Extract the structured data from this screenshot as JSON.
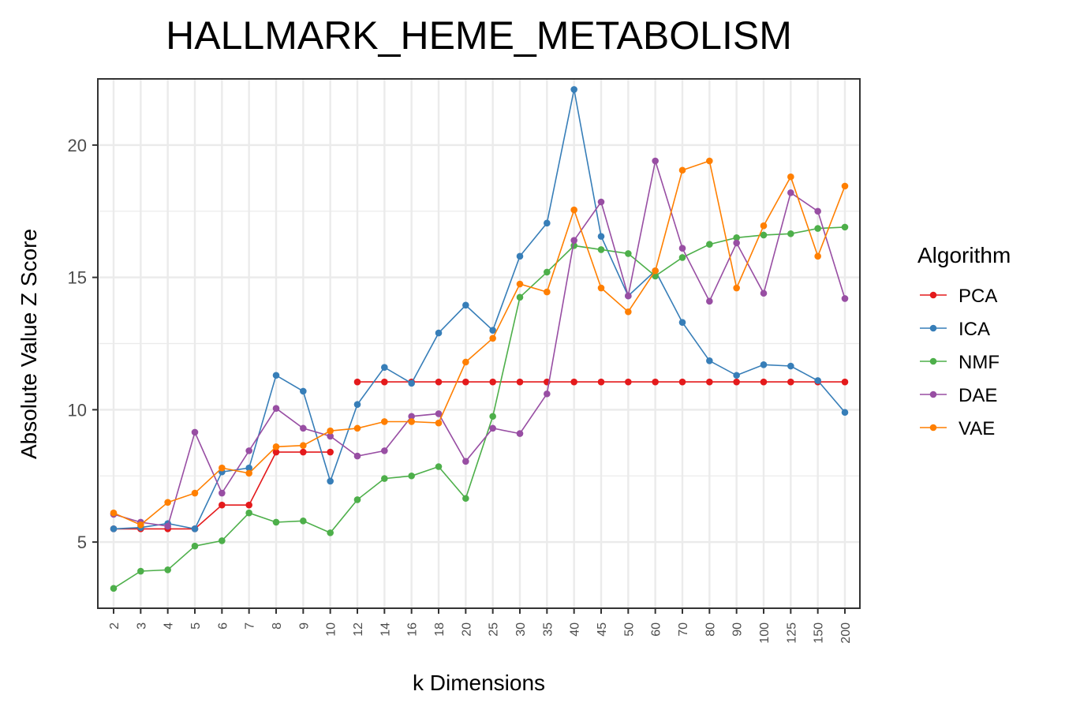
{
  "chart_data": {
    "type": "line",
    "title": "HALLMARK_HEME_METABOLISM",
    "xlabel": "k Dimensions",
    "ylabel": "Absolute Value Z Score",
    "categories": [
      "2",
      "3",
      "4",
      "5",
      "6",
      "7",
      "8",
      "9",
      "10",
      "12",
      "14",
      "16",
      "18",
      "20",
      "25",
      "30",
      "35",
      "40",
      "45",
      "50",
      "60",
      "70",
      "80",
      "90",
      "100",
      "125",
      "150",
      "200"
    ],
    "y_ticks": [
      "5",
      "10",
      "15",
      "20"
    ],
    "ylim": [
      2.5,
      22.5
    ],
    "grid": true,
    "legend": {
      "title": "Algorithm",
      "position": "right"
    },
    "series": [
      {
        "name": "PCA",
        "color": "#e41a1c",
        "values": [
          5.5,
          5.5,
          5.5,
          5.5,
          6.4,
          6.4,
          8.4,
          8.4,
          8.4,
          11.05,
          11.05,
          11.05,
          11.05,
          11.05,
          11.05,
          11.05,
          11.05,
          11.05,
          11.05,
          11.05,
          11.05,
          11.05,
          11.05,
          11.05,
          11.05,
          11.05,
          11.05,
          11.05
        ],
        "line_breaks_after": [
          8
        ]
      },
      {
        "name": "ICA",
        "color": "#377eb8",
        "values": [
          5.5,
          5.55,
          5.7,
          5.5,
          7.65,
          7.8,
          11.3,
          10.7,
          7.3,
          10.2,
          11.6,
          11.0,
          12.9,
          13.95,
          13.0,
          15.8,
          17.05,
          22.1,
          16.55,
          14.3,
          15.25,
          13.3,
          11.85,
          11.3,
          11.7,
          11.65,
          11.1,
          9.9
        ]
      },
      {
        "name": "NMF",
        "color": "#4daf4a",
        "values": [
          3.25,
          3.9,
          3.95,
          4.85,
          5.05,
          6.1,
          5.75,
          5.8,
          5.35,
          6.6,
          7.4,
          7.5,
          7.85,
          6.65,
          9.75,
          14.25,
          15.2,
          16.2,
          16.05,
          15.9,
          15.05,
          15.75,
          16.25,
          16.5,
          16.6,
          16.65,
          16.85,
          16.9
        ]
      },
      {
        "name": "DAE",
        "color": "#984ea3",
        "values": [
          6.05,
          5.75,
          5.6,
          9.15,
          6.85,
          8.45,
          10.05,
          9.3,
          9.0,
          8.25,
          8.45,
          9.75,
          9.85,
          8.05,
          9.3,
          9.1,
          10.6,
          16.4,
          17.85,
          14.3,
          19.4,
          16.1,
          14.1,
          16.3,
          14.4,
          18.2,
          17.5,
          14.2
        ]
      },
      {
        "name": "VAE",
        "color": "#ff7f00",
        "values": [
          6.1,
          5.65,
          6.5,
          6.85,
          7.8,
          7.6,
          8.6,
          8.65,
          9.2,
          9.3,
          9.55,
          9.55,
          9.5,
          11.8,
          12.7,
          14.75,
          14.45,
          17.55,
          14.6,
          13.7,
          15.25,
          19.05,
          19.4,
          14.6,
          16.95,
          18.8,
          15.8,
          18.45
        ]
      }
    ]
  }
}
